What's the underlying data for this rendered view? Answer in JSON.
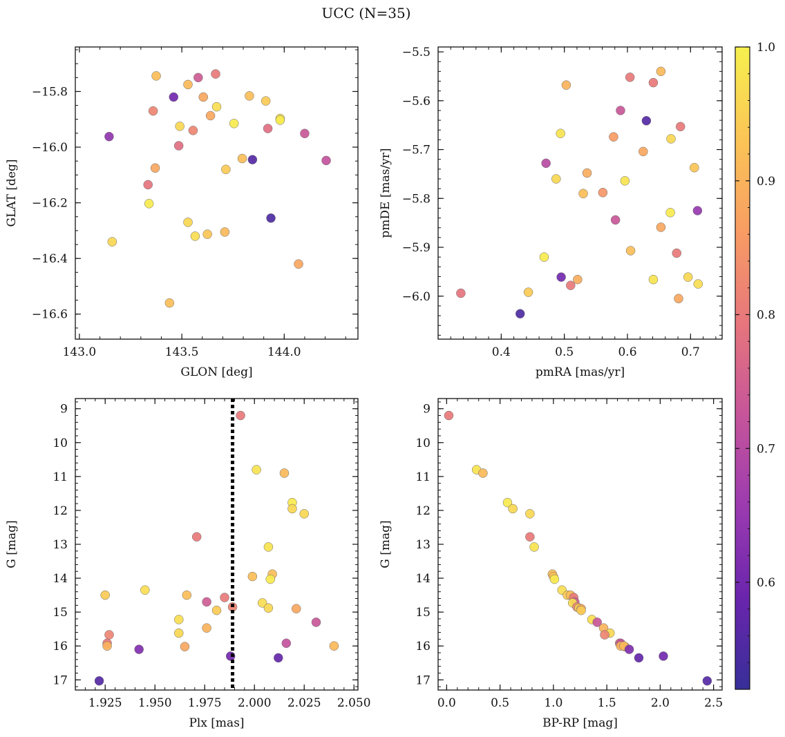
{
  "figure": {
    "title": "UCC (N=35)"
  },
  "colorbar": {
    "ticks": [
      "0.6",
      "0.7",
      "0.8",
      "0.9",
      "1.0"
    ],
    "range": [
      0.52,
      1.0
    ],
    "colors": [
      "#372f98",
      "#6a25ad",
      "#9c3bb0",
      "#c6559a",
      "#e7767c",
      "#f89d63",
      "#fbc556",
      "#f6f04e"
    ]
  },
  "chart_data": [
    {
      "id": "glon-glat",
      "type": "scatter",
      "title": "",
      "xlabel": "GLON [deg]",
      "ylabel": "GLAT [deg]",
      "xlim": [
        142.98,
        144.36
      ],
      "ylim": [
        -16.69,
        -15.64
      ],
      "y_inverted": false,
      "xticks": [
        {
          "v": 143.0,
          "label": "143.0"
        },
        {
          "v": 143.5,
          "label": "143.5"
        },
        {
          "v": 144.0,
          "label": "144.0"
        }
      ],
      "yticks": [
        {
          "v": -15.8,
          "label": "−15.8"
        },
        {
          "v": -16.0,
          "label": "−16.0"
        },
        {
          "v": -16.2,
          "label": "−16.2"
        },
        {
          "v": -16.4,
          "label": "−16.4"
        },
        {
          "v": -16.6,
          "label": "−16.6"
        }
      ],
      "xminor": 0.1,
      "yminor": 0.05,
      "points": [
        {
          "x": 143.375,
          "y": -15.744,
          "c": 0.92
        },
        {
          "x": 143.53,
          "y": -15.775,
          "c": 0.91
        },
        {
          "x": 143.58,
          "y": -15.75,
          "c": 0.74
        },
        {
          "x": 143.665,
          "y": -15.737,
          "c": 0.8
        },
        {
          "x": 143.46,
          "y": -15.82,
          "c": 0.6
        },
        {
          "x": 143.605,
          "y": -15.82,
          "c": 0.88
        },
        {
          "x": 143.83,
          "y": -15.816,
          "c": 0.92
        },
        {
          "x": 143.91,
          "y": -15.834,
          "c": 0.94
        },
        {
          "x": 143.36,
          "y": -15.87,
          "c": 0.82
        },
        {
          "x": 143.67,
          "y": -15.855,
          "c": 0.97
        },
        {
          "x": 143.64,
          "y": -15.887,
          "c": 0.88
        },
        {
          "x": 143.98,
          "y": -15.897,
          "c": 0.97
        },
        {
          "x": 143.98,
          "y": -15.903,
          "c": 0.99
        },
        {
          "x": 143.49,
          "y": -15.925,
          "c": 0.96
        },
        {
          "x": 143.755,
          "y": -15.915,
          "c": 0.99
        },
        {
          "x": 143.555,
          "y": -15.94,
          "c": 0.82
        },
        {
          "x": 143.92,
          "y": -15.933,
          "c": 0.78
        },
        {
          "x": 144.1,
          "y": -15.951,
          "c": 0.73
        },
        {
          "x": 143.145,
          "y": -15.962,
          "c": 0.64
        },
        {
          "x": 143.485,
          "y": -15.995,
          "c": 0.78
        },
        {
          "x": 143.795,
          "y": -16.041,
          "c": 0.92
        },
        {
          "x": 143.845,
          "y": -16.045,
          "c": 0.56
        },
        {
          "x": 144.205,
          "y": -16.048,
          "c": 0.72
        },
        {
          "x": 143.37,
          "y": -16.075,
          "c": 0.88
        },
        {
          "x": 143.715,
          "y": -16.08,
          "c": 0.94
        },
        {
          "x": 143.335,
          "y": -16.135,
          "c": 0.79
        },
        {
          "x": 143.34,
          "y": -16.203,
          "c": 0.99
        },
        {
          "x": 143.935,
          "y": -16.255,
          "c": 0.55
        },
        {
          "x": 143.53,
          "y": -16.27,
          "c": 0.96
        },
        {
          "x": 143.71,
          "y": -16.305,
          "c": 0.91
        },
        {
          "x": 143.625,
          "y": -16.313,
          "c": 0.93
        },
        {
          "x": 143.565,
          "y": -16.32,
          "c": 0.97
        },
        {
          "x": 143.16,
          "y": -16.34,
          "c": 0.96
        },
        {
          "x": 144.07,
          "y": -16.42,
          "c": 0.88
        },
        {
          "x": 143.44,
          "y": -16.56,
          "c": 0.92
        }
      ]
    },
    {
      "id": "pmra-pmde",
      "type": "scatter",
      "title": "",
      "xlabel": "pmRA [mas/yr]",
      "ylabel": "pmDE [mas/yr]",
      "xlim": [
        0.3,
        0.75
      ],
      "ylim": [
        -6.088,
        -5.49
      ],
      "y_inverted": false,
      "xticks": [
        {
          "v": 0.4,
          "label": "0.4"
        },
        {
          "v": 0.5,
          "label": "0.5"
        },
        {
          "v": 0.6,
          "label": "0.6"
        },
        {
          "v": 0.7,
          "label": "0.7"
        }
      ],
      "yticks": [
        {
          "v": -5.5,
          "label": "−5.5"
        },
        {
          "v": -5.6,
          "label": "−5.6"
        },
        {
          "v": -5.7,
          "label": "−5.7"
        },
        {
          "v": -5.8,
          "label": "−5.8"
        },
        {
          "v": -5.9,
          "label": "−5.9"
        },
        {
          "v": -6.0,
          "label": "−6.0"
        }
      ],
      "xminor": 0.02,
      "yminor": 0.02,
      "points": [
        {
          "x": 0.653,
          "y": -5.54,
          "c": 0.91
        },
        {
          "x": 0.604,
          "y": -5.552,
          "c": 0.8
        },
        {
          "x": 0.641,
          "y": -5.563,
          "c": 0.8
        },
        {
          "x": 0.503,
          "y": -5.568,
          "c": 0.9
        },
        {
          "x": 0.589,
          "y": -5.62,
          "c": 0.73
        },
        {
          "x": 0.63,
          "y": -5.641,
          "c": 0.56
        },
        {
          "x": 0.684,
          "y": -5.653,
          "c": 0.8
        },
        {
          "x": 0.494,
          "y": -5.667,
          "c": 0.98
        },
        {
          "x": 0.578,
          "y": -5.674,
          "c": 0.86
        },
        {
          "x": 0.669,
          "y": -5.678,
          "c": 0.96
        },
        {
          "x": 0.625,
          "y": -5.704,
          "c": 0.88
        },
        {
          "x": 0.471,
          "y": -5.728,
          "c": 0.7
        },
        {
          "x": 0.706,
          "y": -5.737,
          "c": 0.93
        },
        {
          "x": 0.536,
          "y": -5.748,
          "c": 0.89
        },
        {
          "x": 0.487,
          "y": -5.76,
          "c": 0.96
        },
        {
          "x": 0.596,
          "y": -5.764,
          "c": 0.98
        },
        {
          "x": 0.561,
          "y": -5.788,
          "c": 0.85
        },
        {
          "x": 0.53,
          "y": -5.79,
          "c": 0.92
        },
        {
          "x": 0.711,
          "y": -5.825,
          "c": 0.65
        },
        {
          "x": 0.668,
          "y": -5.829,
          "c": 0.99
        },
        {
          "x": 0.581,
          "y": -5.844,
          "c": 0.73
        },
        {
          "x": 0.653,
          "y": -5.859,
          "c": 0.88
        },
        {
          "x": 0.605,
          "y": -5.907,
          "c": 0.92
        },
        {
          "x": 0.678,
          "y": -5.912,
          "c": 0.8
        },
        {
          "x": 0.468,
          "y": -5.92,
          "c": 0.99
        },
        {
          "x": 0.495,
          "y": -5.961,
          "c": 0.6
        },
        {
          "x": 0.696,
          "y": -5.961,
          "c": 0.96
        },
        {
          "x": 0.521,
          "y": -5.966,
          "c": 0.89
        },
        {
          "x": 0.641,
          "y": -5.966,
          "c": 0.98
        },
        {
          "x": 0.712,
          "y": -5.975,
          "c": 0.97
        },
        {
          "x": 0.51,
          "y": -5.978,
          "c": 0.8
        },
        {
          "x": 0.443,
          "y": -5.992,
          "c": 0.94
        },
        {
          "x": 0.336,
          "y": -5.994,
          "c": 0.79
        },
        {
          "x": 0.681,
          "y": -6.005,
          "c": 0.88
        },
        {
          "x": 0.43,
          "y": -6.036,
          "c": 0.55
        }
      ]
    },
    {
      "id": "plx-g",
      "type": "scatter",
      "title": "",
      "xlabel": "Plx [mas]",
      "ylabel": "G [mag]",
      "xlim": [
        1.91,
        2.052
      ],
      "ylim": [
        8.7,
        17.3
      ],
      "y_inverted": true,
      "vline": {
        "x": 1.989,
        "style": "dotted"
      },
      "xticks": [
        {
          "v": 1.925,
          "label": "1.925"
        },
        {
          "v": 1.95,
          "label": "1.950"
        },
        {
          "v": 1.975,
          "label": "1.975"
        },
        {
          "v": 2.0,
          "label": "2.000"
        },
        {
          "v": 2.025,
          "label": "2.025"
        },
        {
          "v": 2.05,
          "label": "2.050"
        }
      ],
      "yticks": [
        {
          "v": 9,
          "label": "9"
        },
        {
          "v": 10,
          "label": "10"
        },
        {
          "v": 11,
          "label": "11"
        },
        {
          "v": 12,
          "label": "12"
        },
        {
          "v": 13,
          "label": "13"
        },
        {
          "v": 14,
          "label": "14"
        },
        {
          "v": 15,
          "label": "15"
        },
        {
          "v": 16,
          "label": "16"
        },
        {
          "v": 17,
          "label": "17"
        }
      ],
      "xminor": 0.005,
      "yminor": 0.2,
      "points": [
        {
          "x": 1.993,
          "y": 9.2,
          "c": 0.8
        },
        {
          "x": 2.001,
          "y": 10.8,
          "c": 0.98
        },
        {
          "x": 2.015,
          "y": 10.9,
          "c": 0.91
        },
        {
          "x": 2.019,
          "y": 11.77,
          "c": 0.99
        },
        {
          "x": 2.019,
          "y": 11.95,
          "c": 0.96
        },
        {
          "x": 2.025,
          "y": 12.1,
          "c": 0.96
        },
        {
          "x": 1.971,
          "y": 12.78,
          "c": 0.8
        },
        {
          "x": 2.007,
          "y": 13.08,
          "c": 0.98
        },
        {
          "x": 2.009,
          "y": 13.88,
          "c": 0.92
        },
        {
          "x": 1.999,
          "y": 13.95,
          "c": 0.92
        },
        {
          "x": 2.008,
          "y": 14.03,
          "c": 0.99
        },
        {
          "x": 1.945,
          "y": 14.35,
          "c": 0.97
        },
        {
          "x": 1.925,
          "y": 14.5,
          "c": 0.94
        },
        {
          "x": 1.966,
          "y": 14.5,
          "c": 0.92
        },
        {
          "x": 1.985,
          "y": 14.57,
          "c": 0.8
        },
        {
          "x": 1.976,
          "y": 14.7,
          "c": 0.74
        },
        {
          "x": 2.004,
          "y": 14.73,
          "c": 0.97
        },
        {
          "x": 1.989,
          "y": 14.85,
          "c": 0.82
        },
        {
          "x": 2.007,
          "y": 14.88,
          "c": 0.96
        },
        {
          "x": 2.021,
          "y": 14.9,
          "c": 0.88
        },
        {
          "x": 1.981,
          "y": 14.95,
          "c": 0.94
        },
        {
          "x": 1.962,
          "y": 15.22,
          "c": 0.97
        },
        {
          "x": 2.031,
          "y": 15.3,
          "c": 0.73
        },
        {
          "x": 1.976,
          "y": 15.47,
          "c": 0.9
        },
        {
          "x": 1.962,
          "y": 15.62,
          "c": 0.96
        },
        {
          "x": 1.927,
          "y": 15.67,
          "c": 0.82
        },
        {
          "x": 1.926,
          "y": 15.92,
          "c": 0.8
        },
        {
          "x": 2.016,
          "y": 15.92,
          "c": 0.72
        },
        {
          "x": 1.926,
          "y": 16.0,
          "c": 0.9
        },
        {
          "x": 1.965,
          "y": 16.02,
          "c": 0.88
        },
        {
          "x": 2.04,
          "y": 16.0,
          "c": 0.91
        },
        {
          "x": 1.942,
          "y": 16.1,
          "c": 0.62
        },
        {
          "x": 1.988,
          "y": 16.3,
          "c": 0.6
        },
        {
          "x": 2.012,
          "y": 16.35,
          "c": 0.58
        },
        {
          "x": 1.922,
          "y": 17.03,
          "c": 0.56
        }
      ]
    },
    {
      "id": "bprp-g",
      "type": "scatter",
      "title": "",
      "xlabel": "BP-RP [mag]",
      "ylabel": "G [mag]",
      "xlim": [
        -0.08,
        2.58
      ],
      "ylim": [
        8.7,
        17.3
      ],
      "y_inverted": true,
      "xticks": [
        {
          "v": 0.0,
          "label": "0.0"
        },
        {
          "v": 0.5,
          "label": "0.5"
        },
        {
          "v": 1.0,
          "label": "1.0"
        },
        {
          "v": 1.5,
          "label": "1.5"
        },
        {
          "v": 2.0,
          "label": "2.0"
        },
        {
          "v": 2.5,
          "label": "2.5"
        }
      ],
      "yticks": [
        {
          "v": 9,
          "label": "9"
        },
        {
          "v": 10,
          "label": "10"
        },
        {
          "v": 11,
          "label": "11"
        },
        {
          "v": 12,
          "label": "12"
        },
        {
          "v": 13,
          "label": "13"
        },
        {
          "v": 14,
          "label": "14"
        },
        {
          "v": 15,
          "label": "15"
        },
        {
          "v": 16,
          "label": "16"
        },
        {
          "v": 17,
          "label": "17"
        }
      ],
      "xminor": 0.1,
      "yminor": 0.2,
      "points": [
        {
          "x": 0.02,
          "y": 9.2,
          "c": 0.8
        },
        {
          "x": 0.28,
          "y": 10.8,
          "c": 0.98
        },
        {
          "x": 0.34,
          "y": 10.9,
          "c": 0.91
        },
        {
          "x": 0.57,
          "y": 11.77,
          "c": 0.99
        },
        {
          "x": 0.62,
          "y": 11.95,
          "c": 0.96
        },
        {
          "x": 0.78,
          "y": 12.1,
          "c": 0.96
        },
        {
          "x": 0.78,
          "y": 12.78,
          "c": 0.8
        },
        {
          "x": 0.82,
          "y": 13.08,
          "c": 0.98
        },
        {
          "x": 0.99,
          "y": 13.88,
          "c": 0.92
        },
        {
          "x": 1.0,
          "y": 13.95,
          "c": 0.92
        },
        {
          "x": 1.01,
          "y": 14.03,
          "c": 0.99
        },
        {
          "x": 1.08,
          "y": 14.35,
          "c": 0.97
        },
        {
          "x": 1.13,
          "y": 14.5,
          "c": 0.94
        },
        {
          "x": 1.16,
          "y": 14.5,
          "c": 0.92
        },
        {
          "x": 1.19,
          "y": 14.57,
          "c": 0.8
        },
        {
          "x": 1.2,
          "y": 14.7,
          "c": 0.74
        },
        {
          "x": 1.18,
          "y": 14.73,
          "c": 0.97
        },
        {
          "x": 1.22,
          "y": 14.85,
          "c": 0.82
        },
        {
          "x": 1.24,
          "y": 14.88,
          "c": 0.96
        },
        {
          "x": 1.26,
          "y": 14.9,
          "c": 0.88
        },
        {
          "x": 1.26,
          "y": 14.95,
          "c": 0.94
        },
        {
          "x": 1.36,
          "y": 15.22,
          "c": 0.97
        },
        {
          "x": 1.41,
          "y": 15.3,
          "c": 0.73
        },
        {
          "x": 1.47,
          "y": 15.47,
          "c": 0.9
        },
        {
          "x": 1.53,
          "y": 15.62,
          "c": 0.96
        },
        {
          "x": 1.48,
          "y": 15.67,
          "c": 0.82
        },
        {
          "x": 1.62,
          "y": 15.92,
          "c": 0.8
        },
        {
          "x": 1.63,
          "y": 15.92,
          "c": 0.72
        },
        {
          "x": 1.63,
          "y": 16.0,
          "c": 0.9
        },
        {
          "x": 1.67,
          "y": 16.02,
          "c": 0.88
        },
        {
          "x": 1.66,
          "y": 16.0,
          "c": 0.91
        },
        {
          "x": 1.71,
          "y": 16.1,
          "c": 0.62
        },
        {
          "x": 2.03,
          "y": 16.3,
          "c": 0.6
        },
        {
          "x": 1.8,
          "y": 16.35,
          "c": 0.58
        },
        {
          "x": 2.44,
          "y": 17.03,
          "c": 0.56
        }
      ]
    }
  ]
}
